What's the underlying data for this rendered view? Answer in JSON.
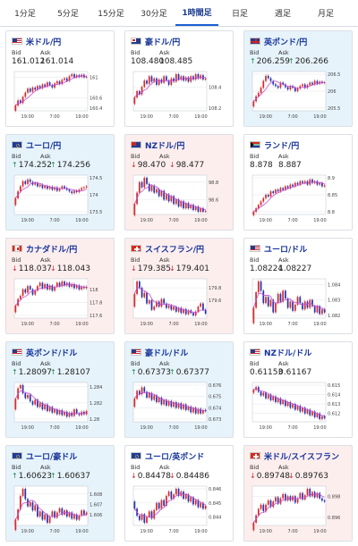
{
  "tabs": [
    {
      "label": "1分足",
      "active": false
    },
    {
      "label": "5分足",
      "active": false
    },
    {
      "label": "15分足",
      "active": false
    },
    {
      "label": "30分足",
      "active": false
    },
    {
      "label": "1時間足",
      "active": true
    },
    {
      "label": "日足",
      "active": false
    },
    {
      "label": "週足",
      "active": false
    },
    {
      "label": "月足",
      "active": false
    }
  ],
  "labels": {
    "bid": "Bid",
    "ask": "Ask"
  },
  "colors": {
    "up_candle": "#d92a2a",
    "down_candle": "#2733b0",
    "ma_line": "#c64bd1"
  },
  "cards": [
    {
      "name": "米ドル/円",
      "flag": "us",
      "bg": "plain",
      "dir": "",
      "bid": "161.012",
      "ask": "161.014",
      "yticks": [
        "161",
        "160.6",
        "160.4"
      ],
      "xticks": [
        "19:00",
        "7:00",
        "19:00"
      ],
      "closes": [
        160.45,
        160.55,
        160.5,
        160.62,
        160.7,
        160.78,
        160.72,
        160.8,
        160.76,
        160.83,
        160.79,
        160.86,
        160.82,
        160.9,
        160.85,
        160.8,
        160.88,
        160.92,
        160.87,
        160.95,
        160.98,
        160.93,
        161.02,
        161.06,
        161.0,
        161.04,
        161.01,
        161.05,
        161.0,
        161.01
      ]
    },
    {
      "name": "豪ドル/円",
      "flag": "au",
      "bg": "plain",
      "dir": "",
      "bid": "108.480",
      "ask": "108.485",
      "yticks": [
        "108.4",
        "108.2"
      ],
      "xticks": [
        "19:00",
        "7:00",
        "19:00"
      ],
      "closes": [
        108.3,
        108.36,
        108.33,
        108.4,
        108.46,
        108.43,
        108.5,
        108.45,
        108.48,
        108.42,
        108.47,
        108.44,
        108.5,
        108.46,
        108.42,
        108.48,
        108.45,
        108.52,
        108.47,
        108.5,
        108.46,
        108.49,
        108.45,
        108.5,
        108.47,
        108.52,
        108.48,
        108.51,
        108.47,
        108.48
      ]
    },
    {
      "name": "英ポンド/円",
      "flag": "gb",
      "bg": "up",
      "dir": "up",
      "bid": "206.259",
      "ask": "206.266",
      "yticks": [
        "206.5",
        "206",
        "205.5"
      ],
      "xticks": [
        "19:00",
        "7:00",
        "19:00"
      ],
      "closes": [
        205.7,
        205.85,
        205.95,
        206.1,
        206.3,
        206.45,
        206.38,
        206.3,
        206.2,
        206.15,
        206.1,
        206.25,
        206.2,
        206.12,
        206.05,
        206.15,
        206.1,
        206.0,
        206.08,
        206.15,
        206.2,
        206.1,
        206.18,
        206.25,
        206.2,
        206.3,
        206.22,
        206.28,
        206.24,
        206.26
      ]
    },
    {
      "name": "ユーロ/円",
      "flag": "eu",
      "bg": "up",
      "dir": "up",
      "bid": "174.252",
      "ask": "174.256",
      "yticks": [
        "174.5",
        "174",
        "173.5"
      ],
      "xticks": [
        "19:00",
        "7:00",
        "19:00"
      ],
      "closes": [
        173.9,
        174.1,
        174.25,
        174.4,
        174.32,
        174.45,
        174.38,
        174.3,
        174.35,
        174.25,
        174.3,
        174.2,
        174.26,
        174.18,
        174.24,
        174.15,
        174.22,
        174.12,
        174.18,
        174.25,
        174.2,
        174.15,
        174.1,
        174.05,
        174.12,
        174.08,
        174.15,
        174.2,
        174.22,
        174.25
      ]
    },
    {
      "name": "NZドル/円",
      "flag": "nz",
      "bg": "down",
      "dir": "dn",
      "bid": "98.470",
      "ask": "98.477",
      "yticks": [
        "98.8",
        "98.6"
      ],
      "xticks": [
        "19:00",
        "7:00",
        "19:00"
      ],
      "closes": [
        98.55,
        98.68,
        98.8,
        98.74,
        98.85,
        98.78,
        98.7,
        98.76,
        98.68,
        98.72,
        98.64,
        98.7,
        98.6,
        98.66,
        98.58,
        98.64,
        98.55,
        98.6,
        98.52,
        98.58,
        98.5,
        98.56,
        98.5,
        98.54,
        98.48,
        98.52,
        98.46,
        98.5,
        98.46,
        98.47
      ]
    },
    {
      "name": "ランド/円",
      "flag": "za",
      "bg": "plain",
      "dir": "",
      "bid": "8.878",
      "ask": "8.887",
      "yticks": [
        "8.9",
        "8.85",
        "8.8"
      ],
      "xticks": [
        "19:00",
        "7:00",
        "19:00"
      ],
      "closes": [
        8.8,
        8.81,
        8.82,
        8.83,
        8.84,
        8.85,
        8.845,
        8.86,
        8.855,
        8.865,
        8.86,
        8.87,
        8.865,
        8.875,
        8.87,
        8.88,
        8.875,
        8.885,
        8.88,
        8.89,
        8.885,
        8.89,
        8.88,
        8.895,
        8.885,
        8.89,
        8.88,
        8.885,
        8.875,
        8.878
      ]
    },
    {
      "name": "カナダドル/円",
      "flag": "ca",
      "bg": "down",
      "dir": "dn",
      "bid": "118.037",
      "ask": "118.043",
      "yticks": [
        "118",
        "117.8",
        "117.6"
      ],
      "xticks": [
        "19:00",
        "7:00",
        "19:00"
      ],
      "closes": [
        117.75,
        117.85,
        117.9,
        118.0,
        117.95,
        118.05,
        118.0,
        117.92,
        117.98,
        118.05,
        118.1,
        118.02,
        118.08,
        118.0,
        118.06,
        117.98,
        118.04,
        118.1,
        118.05,
        118.12,
        118.06,
        118.1,
        118.04,
        118.08,
        118.02,
        118.06,
        118.0,
        118.04,
        118.02,
        118.04
      ]
    },
    {
      "name": "スイスフラン/円",
      "flag": "ch",
      "bg": "down",
      "dir": "dn",
      "bid": "179.385",
      "ask": "179.401",
      "yticks": [
        "179.8",
        "179.6"
      ],
      "xticks": [
        "19:00",
        "7:00",
        "19:00"
      ],
      "closes": [
        179.7,
        179.9,
        179.8,
        179.65,
        179.72,
        179.55,
        179.6,
        179.45,
        179.5,
        179.58,
        179.5,
        179.62,
        179.55,
        179.48,
        179.52,
        179.45,
        179.5,
        179.42,
        179.48,
        179.4,
        179.46,
        179.38,
        179.44,
        179.4,
        179.36,
        179.42,
        179.5,
        179.55,
        179.45,
        179.39
      ]
    },
    {
      "name": "ユーロ/ドル",
      "flag": "us",
      "bg": "plain",
      "dir": "",
      "bid": "1.08224",
      "ask": "1.08227",
      "yticks": [
        "1.084",
        "1.083",
        "1.082"
      ],
      "xticks": [
        "19:00",
        "7:00",
        "19:00"
      ],
      "closes": [
        1.0825,
        1.0835,
        1.0842,
        1.0836,
        1.0828,
        1.0832,
        1.0826,
        1.083,
        1.0822,
        1.0828,
        1.0834,
        1.0829,
        1.0836,
        1.0831,
        1.0825,
        1.0829,
        1.0823,
        1.0827,
        1.0832,
        1.0828,
        1.0824,
        1.0829,
        1.0825,
        1.083,
        1.0826,
        1.0822,
        1.0826,
        1.0821,
        1.0824,
        1.0822
      ]
    },
    {
      "name": "英ポンド/ドル",
      "flag": "us",
      "bg": "up",
      "dir": "up",
      "bid": "1.28097",
      "ask": "1.28107",
      "yticks": [
        "1.284",
        "1.282",
        "1.28"
      ],
      "xticks": [
        "19:00",
        "7:00",
        "19:00"
      ],
      "closes": [
        1.2825,
        1.2838,
        1.2842,
        1.2832,
        1.2826,
        1.283,
        1.2822,
        1.2818,
        1.2824,
        1.2815,
        1.282,
        1.2812,
        1.2818,
        1.281,
        1.2815,
        1.2808,
        1.2812,
        1.2806,
        1.2811,
        1.2805,
        1.2809,
        1.2803,
        1.2808,
        1.2804,
        1.2812,
        1.2807,
        1.2805,
        1.2809,
        1.2806,
        1.281
      ]
    },
    {
      "name": "豪ドル/ドル",
      "flag": "us",
      "bg": "up",
      "dir": "up",
      "bid": "0.67373",
      "ask": "0.67377",
      "yticks": [
        "0.676",
        "0.675",
        "0.674",
        "0.673"
      ],
      "xticks": [
        "19:00",
        "7:00",
        "19:00"
      ],
      "closes": [
        0.6748,
        0.6755,
        0.6752,
        0.6758,
        0.6754,
        0.6749,
        0.6753,
        0.6747,
        0.6751,
        0.6745,
        0.6749,
        0.6743,
        0.6747,
        0.6742,
        0.6746,
        0.6741,
        0.6745,
        0.674,
        0.6744,
        0.6739,
        0.6743,
        0.6738,
        0.6741,
        0.6736,
        0.674,
        0.6735,
        0.6739,
        0.6735,
        0.6738,
        0.6737
      ]
    },
    {
      "name": "NZドル/ドル",
      "flag": "us",
      "bg": "plain",
      "dir": "",
      "bid": "0.61153",
      "ask": "0.61167",
      "yticks": [
        "0.615",
        "0.614",
        "0.613",
        "0.612"
      ],
      "xticks": [
        "19:00",
        "7:00",
        "19:00"
      ],
      "closes": [
        0.6145,
        0.6148,
        0.6143,
        0.6139,
        0.6142,
        0.6136,
        0.614,
        0.6134,
        0.6138,
        0.6132,
        0.6136,
        0.613,
        0.6134,
        0.6128,
        0.6132,
        0.6126,
        0.613,
        0.6124,
        0.6128,
        0.6122,
        0.6126,
        0.612,
        0.6124,
        0.6118,
        0.6122,
        0.6116,
        0.612,
        0.6114,
        0.6117,
        0.6115
      ]
    },
    {
      "name": "ユーロ/豪ドル",
      "flag": "eu",
      "bg": "up",
      "dir": "up",
      "bid": "1.60623",
      "ask": "1.60637",
      "yticks": [
        "1.608",
        "1.607",
        "1.606"
      ],
      "xticks": [
        "19:00",
        "7:00",
        "19:00"
      ],
      "closes": [
        1.6055,
        1.6065,
        1.6078,
        1.6085,
        1.6075,
        1.6068,
        1.6072,
        1.6064,
        1.6069,
        1.6058,
        1.6063,
        1.6055,
        1.606,
        1.6052,
        1.6058,
        1.6063,
        1.6057,
        1.6062,
        1.6066,
        1.606,
        1.6064,
        1.6058,
        1.6062,
        1.6056,
        1.606,
        1.6055,
        1.6059,
        1.6064,
        1.606,
        1.6062
      ]
    },
    {
      "name": "ユーロ/英ポンド",
      "flag": "eu",
      "bg": "plain",
      "dir": "dn",
      "bid": "0.84478",
      "ask": "0.84486",
      "yticks": [
        "0.846",
        "0.845",
        "0.844"
      ],
      "xticks": [
        "19:00",
        "7:00",
        "19:00"
      ],
      "closes": [
        0.8446,
        0.8441,
        0.8438,
        0.8442,
        0.8436,
        0.844,
        0.8444,
        0.8439,
        0.8445,
        0.845,
        0.8446,
        0.8452,
        0.8448,
        0.8455,
        0.8458,
        0.8453,
        0.8456,
        0.846,
        0.8455,
        0.8458,
        0.8453,
        0.8456,
        0.8451,
        0.8454,
        0.8449,
        0.8452,
        0.8447,
        0.845,
        0.8446,
        0.8448
      ]
    },
    {
      "name": "米ドル/スイスフラン",
      "flag": "ch",
      "bg": "down",
      "dir": "dn",
      "bid": "0.89748",
      "ask": "0.89763",
      "yticks": [
        "0.898",
        "0.896"
      ],
      "xticks": [
        "19:00",
        "7:00",
        "19:00"
      ],
      "closes": [
        0.8955,
        0.8962,
        0.8968,
        0.8972,
        0.8966,
        0.8972,
        0.8976,
        0.897,
        0.8975,
        0.8979,
        0.8973,
        0.8978,
        0.8982,
        0.8976,
        0.898,
        0.8976,
        0.898,
        0.8974,
        0.8978,
        0.8983,
        0.8977,
        0.8981,
        0.8987,
        0.898,
        0.8984,
        0.8979,
        0.8983,
        0.8978,
        0.8976,
        0.8975
      ]
    }
  ]
}
